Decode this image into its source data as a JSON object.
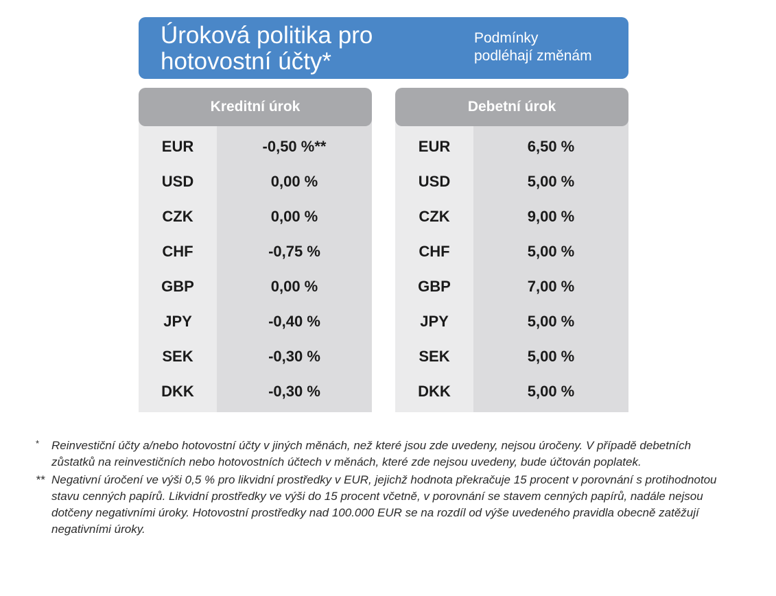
{
  "header": {
    "title": "Úroková politika pro\nhotovostní účty*",
    "note": "Podmínky\npodléhají změnám"
  },
  "credit": {
    "heading": "Kreditní úrok",
    "rows": [
      {
        "currency": "EUR",
        "rate": "-0,50 %**"
      },
      {
        "currency": "USD",
        "rate": "0,00 %"
      },
      {
        "currency": "CZK",
        "rate": "0,00 %"
      },
      {
        "currency": "CHF",
        "rate": "-0,75 %"
      },
      {
        "currency": "GBP",
        "rate": "0,00 %"
      },
      {
        "currency": "JPY",
        "rate": "-0,40 %"
      },
      {
        "currency": "SEK",
        "rate": "-0,30 %"
      },
      {
        "currency": "DKK",
        "rate": "-0,30 %"
      }
    ]
  },
  "debit": {
    "heading": "Debetní úrok",
    "rows": [
      {
        "currency": "EUR",
        "rate": "6,50 %"
      },
      {
        "currency": "USD",
        "rate": "5,00 %"
      },
      {
        "currency": "CZK",
        "rate": "9,00 %"
      },
      {
        "currency": "CHF",
        "rate": "5,00 %"
      },
      {
        "currency": "GBP",
        "rate": "7,00 %"
      },
      {
        "currency": "JPY",
        "rate": "5,00 %"
      },
      {
        "currency": "SEK",
        "rate": "5,00 %"
      },
      {
        "currency": "DKK",
        "rate": "5,00 %"
      }
    ]
  },
  "footnotes": [
    {
      "mark": "*",
      "text": "Reinvestiční účty a/nebo hotovostní účty v jiných měnách, než které jsou zde uvedeny, nejsou úročeny. V případě debetních zůstatků na reinvestičních nebo hotovostních účtech v měnách, které zde nejsou uvedeny, bude účtován poplatek."
    },
    {
      "mark": "**",
      "text": "Negativní úročení ve výši 0,5 % pro likvidní prostředky v EUR, jejichž hodnota překračuje 15 procent v porovnání s protihodnotou stavu cenných papírů. Likvidní prostředky ve výši do 15 procent včetně, v porovnání se stavem cenných papírů, nadále nejsou dotčeny negativními úroky. Hotovostní prostředky nad 100.000 EUR se na rozdíl od výše uvedeného pravidla obecně zatěžují negativními úroky."
    }
  ],
  "colors": {
    "header_blue": "#4a87c8",
    "panel_head_gray": "#a8a9ac",
    "currency_col_bg": "#ebebec",
    "value_col_bg": "#dcdcde"
  }
}
